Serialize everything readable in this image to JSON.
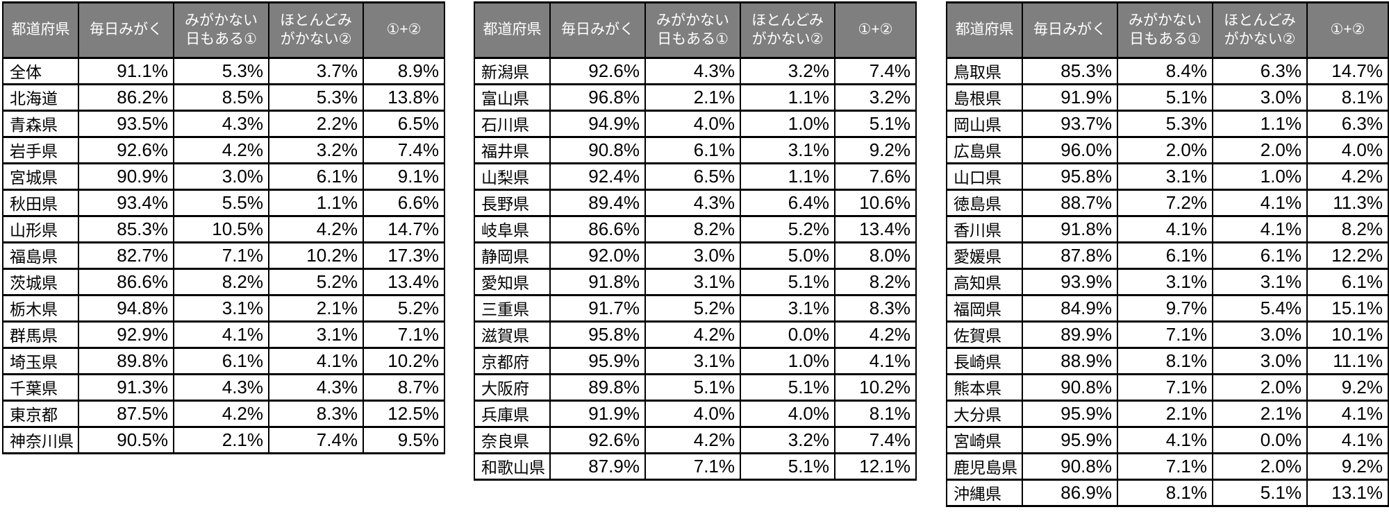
{
  "styles": {
    "header_bg": "#7f7f7f",
    "header_text": "#ffffff",
    "border_color": "#000000",
    "cell_text": "#000000",
    "page_background": "#ffffff"
  },
  "chart_data": [
    {
      "type": "table",
      "columns": [
        "都道府県",
        "毎日みがく",
        "みがかない\n日もある①",
        "ほとんどみ\nがかない②",
        "①+②"
      ],
      "rows": [
        [
          "全体",
          "91.1%",
          "5.3%",
          "3.7%",
          "8.9%"
        ],
        [
          "北海道",
          "86.2%",
          "8.5%",
          "5.3%",
          "13.8%"
        ],
        [
          "青森県",
          "93.5%",
          "4.3%",
          "2.2%",
          "6.5%"
        ],
        [
          "岩手県",
          "92.6%",
          "4.2%",
          "3.2%",
          "7.4%"
        ],
        [
          "宮城県",
          "90.9%",
          "3.0%",
          "6.1%",
          "9.1%"
        ],
        [
          "秋田県",
          "93.4%",
          "5.5%",
          "1.1%",
          "6.6%"
        ],
        [
          "山形県",
          "85.3%",
          "10.5%",
          "4.2%",
          "14.7%"
        ],
        [
          "福島県",
          "82.7%",
          "7.1%",
          "10.2%",
          "17.3%"
        ],
        [
          "茨城県",
          "86.6%",
          "8.2%",
          "5.2%",
          "13.4%"
        ],
        [
          "栃木県",
          "94.8%",
          "3.1%",
          "2.1%",
          "5.2%"
        ],
        [
          "群馬県",
          "92.9%",
          "4.1%",
          "3.1%",
          "7.1%"
        ],
        [
          "埼玉県",
          "89.8%",
          "6.1%",
          "4.1%",
          "10.2%"
        ],
        [
          "千葉県",
          "91.3%",
          "4.3%",
          "4.3%",
          "8.7%"
        ],
        [
          "東京都",
          "87.5%",
          "4.2%",
          "8.3%",
          "12.5%"
        ],
        [
          "神奈川県",
          "90.5%",
          "2.1%",
          "7.4%",
          "9.5%"
        ]
      ]
    },
    {
      "type": "table",
      "columns": [
        "都道府県",
        "毎日みがく",
        "みがかない\n日もある①",
        "ほとんどみ\nがかない②",
        "①+②"
      ],
      "rows": [
        [
          "新潟県",
          "92.6%",
          "4.3%",
          "3.2%",
          "7.4%"
        ],
        [
          "富山県",
          "96.8%",
          "2.1%",
          "1.1%",
          "3.2%"
        ],
        [
          "石川県",
          "94.9%",
          "4.0%",
          "1.0%",
          "5.1%"
        ],
        [
          "福井県",
          "90.8%",
          "6.1%",
          "3.1%",
          "9.2%"
        ],
        [
          "山梨県",
          "92.4%",
          "6.5%",
          "1.1%",
          "7.6%"
        ],
        [
          "長野県",
          "89.4%",
          "4.3%",
          "6.4%",
          "10.6%"
        ],
        [
          "岐阜県",
          "86.6%",
          "8.2%",
          "5.2%",
          "13.4%"
        ],
        [
          "静岡県",
          "92.0%",
          "3.0%",
          "5.0%",
          "8.0%"
        ],
        [
          "愛知県",
          "91.8%",
          "3.1%",
          "5.1%",
          "8.2%"
        ],
        [
          "三重県",
          "91.7%",
          "5.2%",
          "3.1%",
          "8.3%"
        ],
        [
          "滋賀県",
          "95.8%",
          "4.2%",
          "0.0%",
          "4.2%"
        ],
        [
          "京都府",
          "95.9%",
          "3.1%",
          "1.0%",
          "4.1%"
        ],
        [
          "大阪府",
          "89.8%",
          "5.1%",
          "5.1%",
          "10.2%"
        ],
        [
          "兵庫県",
          "91.9%",
          "4.0%",
          "4.0%",
          "8.1%"
        ],
        [
          "奈良県",
          "92.6%",
          "4.2%",
          "3.2%",
          "7.4%"
        ],
        [
          "和歌山県",
          "87.9%",
          "7.1%",
          "5.1%",
          "12.1%"
        ]
      ]
    },
    {
      "type": "table",
      "columns": [
        "都道府県",
        "毎日みがく",
        "みがかない\n日もある①",
        "ほとんどみ\nがかない②",
        "①+②"
      ],
      "rows": [
        [
          "鳥取県",
          "85.3%",
          "8.4%",
          "6.3%",
          "14.7%"
        ],
        [
          "島根県",
          "91.9%",
          "5.1%",
          "3.0%",
          "8.1%"
        ],
        [
          "岡山県",
          "93.7%",
          "5.3%",
          "1.1%",
          "6.3%"
        ],
        [
          "広島県",
          "96.0%",
          "2.0%",
          "2.0%",
          "4.0%"
        ],
        [
          "山口県",
          "95.8%",
          "3.1%",
          "1.0%",
          "4.2%"
        ],
        [
          "徳島県",
          "88.7%",
          "7.2%",
          "4.1%",
          "11.3%"
        ],
        [
          "香川県",
          "91.8%",
          "4.1%",
          "4.1%",
          "8.2%"
        ],
        [
          "愛媛県",
          "87.8%",
          "6.1%",
          "6.1%",
          "12.2%"
        ],
        [
          "高知県",
          "93.9%",
          "3.1%",
          "3.1%",
          "6.1%"
        ],
        [
          "福岡県",
          "84.9%",
          "9.7%",
          "5.4%",
          "15.1%"
        ],
        [
          "佐賀県",
          "89.9%",
          "7.1%",
          "3.0%",
          "10.1%"
        ],
        [
          "長崎県",
          "88.9%",
          "8.1%",
          "3.0%",
          "11.1%"
        ],
        [
          "熊本県",
          "90.8%",
          "7.1%",
          "2.0%",
          "9.2%"
        ],
        [
          "大分県",
          "95.9%",
          "2.1%",
          "2.1%",
          "4.1%"
        ],
        [
          "宮崎県",
          "95.9%",
          "4.1%",
          "0.0%",
          "4.1%"
        ],
        [
          "鹿児島県",
          "90.8%",
          "7.1%",
          "2.0%",
          "9.2%"
        ],
        [
          "沖縄県",
          "86.9%",
          "8.1%",
          "5.1%",
          "13.1%"
        ]
      ]
    }
  ]
}
